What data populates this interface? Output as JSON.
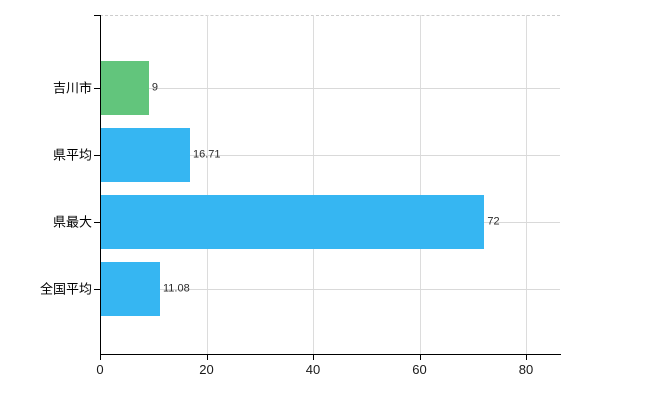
{
  "chart_data": {
    "type": "bar",
    "orientation": "horizontal",
    "title": "",
    "xlabel": "",
    "ylabel": "",
    "categories": [
      "吉川市",
      "県平均",
      "県最大",
      "全国平均"
    ],
    "values": [
      9,
      16.71,
      72,
      11.08
    ],
    "value_labels": [
      "9",
      "16.71",
      "72",
      "11.08"
    ],
    "bar_colors": [
      "#62c57c",
      "#36b6f2",
      "#36b6f2",
      "#36b6f2"
    ],
    "x_ticks": [
      0,
      20,
      40,
      60,
      80
    ],
    "x_tick_labels": [
      "0",
      "20",
      "40",
      "60",
      "80"
    ],
    "xlim": [
      0,
      86.4
    ],
    "grid": true,
    "legend": false
  },
  "colors": {
    "green_bar": "#62c57c",
    "blue_bar": "#36b6f2",
    "gridline": "#dcdcdc",
    "axis": "#000000",
    "tick_text": "#1a1a1a",
    "value_text": "#2b2b2b"
  }
}
